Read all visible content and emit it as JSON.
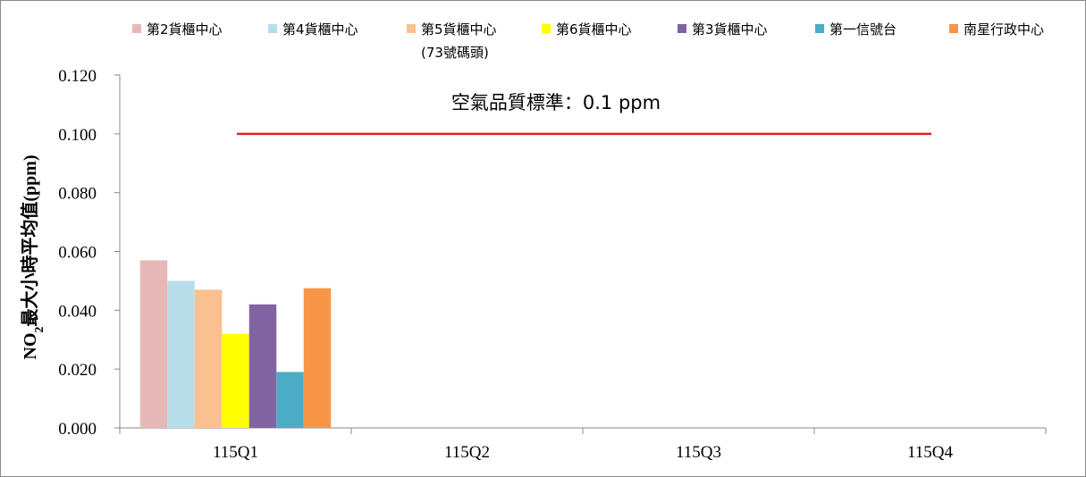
{
  "chart_data": {
    "type": "bar",
    "categories": [
      "115Q1",
      "115Q2",
      "115Q3",
      "115Q4"
    ],
    "series": [
      {
        "name": "第2貨櫃中心",
        "color": "#E6B9B8",
        "values": [
          0.057,
          null,
          null,
          null
        ]
      },
      {
        "name": "第4貨櫃中心",
        "color": "#B7DEE8",
        "values": [
          0.05,
          null,
          null,
          null
        ]
      },
      {
        "name": "第5貨櫃中心",
        "name_line2": "(73號碼頭)",
        "color": "#FAC090",
        "values": [
          0.047,
          null,
          null,
          null
        ]
      },
      {
        "name": "第6貨櫃中心",
        "color": "#FFFF00",
        "values": [
          0.032,
          null,
          null,
          null
        ]
      },
      {
        "name": "第3貨櫃中心",
        "color": "#8064A2",
        "values": [
          0.042,
          null,
          null,
          null
        ]
      },
      {
        "name": "第一信號台",
        "color": "#4BACC6",
        "values": [
          0.019,
          null,
          null,
          null
        ]
      },
      {
        "name": "南星行政中心",
        "color": "#F79646",
        "values": [
          0.0475,
          null,
          null,
          null
        ]
      }
    ],
    "ylabel_main": "NO",
    "ylabel_sub": "2",
    "ylabel_rest": "最大小時平均值(ppm)",
    "ylim": [
      0,
      0.12
    ],
    "yticks": [
      "0.000",
      "0.020",
      "0.040",
      "0.060",
      "0.080",
      "0.100",
      "0.120"
    ],
    "ytick_values": [
      0,
      0.02,
      0.04,
      0.06,
      0.08,
      0.1,
      0.12
    ],
    "standard_line": {
      "value": 0.1,
      "color": "#E0241B",
      "label": "空氣品質標準：0.1 ppm"
    },
    "legend_position": "top"
  }
}
